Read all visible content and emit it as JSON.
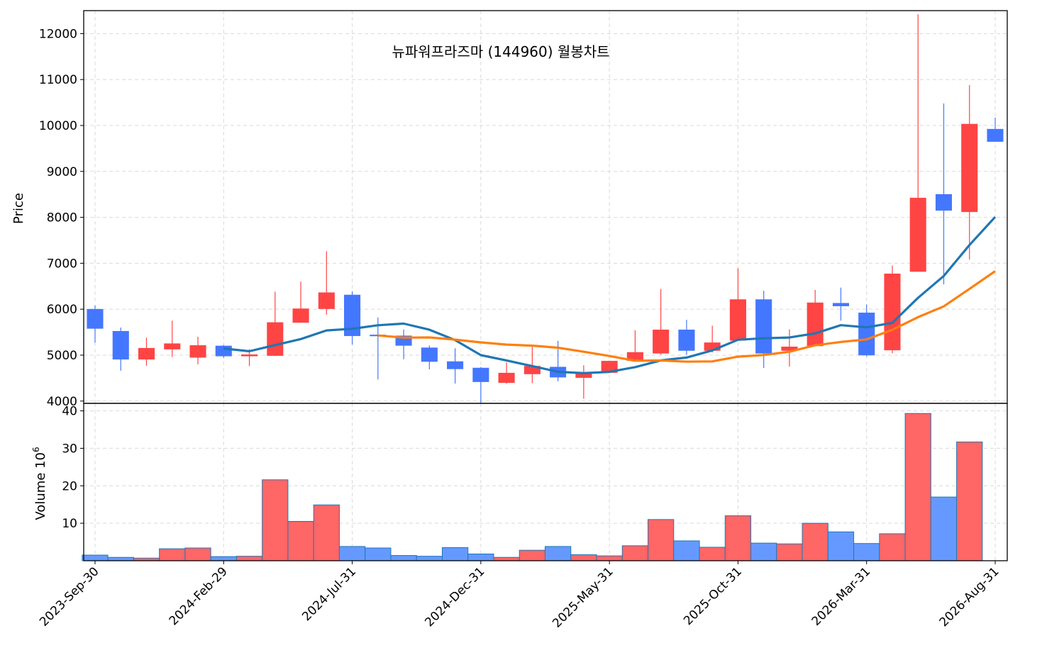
{
  "chart_data": [
    {
      "panel": "price",
      "type": "candlestick",
      "title": "뉴파워프라즈마 (144960) 월봉차트",
      "ylabel": "Price",
      "ylim": [
        3950,
        12500
      ],
      "yticks": [
        "4000",
        "5000",
        "6000",
        "7000",
        "8000",
        "9000",
        "10000",
        "11000",
        "12000"
      ],
      "grid": true,
      "up_color": "#ff4444",
      "down_color": "#4477ff",
      "candles": [
        {
          "date": "2023-Sep-30",
          "open": 6000,
          "high": 6080,
          "low": 5270,
          "close": 5580
        },
        {
          "date": "2023-Oct-31",
          "open": 5520,
          "high": 5600,
          "low": 4660,
          "close": 4910
        },
        {
          "date": "2023-Nov-30",
          "open": 4910,
          "high": 5380,
          "low": 4770,
          "close": 5150
        },
        {
          "date": "2023-Dec-31",
          "open": 5130,
          "high": 5750,
          "low": 4960,
          "close": 5250
        },
        {
          "date": "2024-Jan-31",
          "open": 4950,
          "high": 5400,
          "low": 4800,
          "close": 5210
        },
        {
          "date": "2024-Feb-29",
          "open": 5200,
          "high": 5220,
          "low": 4940,
          "close": 4980
        },
        {
          "date": "2024-Mar-31",
          "open": 4980,
          "high": 5130,
          "low": 4760,
          "close": 5010
        },
        {
          "date": "2024-Apr-30",
          "open": 4990,
          "high": 6380,
          "low": 4980,
          "close": 5710
        },
        {
          "date": "2024-May-31",
          "open": 5710,
          "high": 6600,
          "low": 5710,
          "close": 6010
        },
        {
          "date": "2024-Jun-30",
          "open": 6010,
          "high": 7260,
          "low": 5880,
          "close": 6360
        },
        {
          "date": "2024-Jul-31",
          "open": 6310,
          "high": 6390,
          "low": 5230,
          "close": 5420
        },
        {
          "date": "2024-Aug-31",
          "open": 5440,
          "high": 5820,
          "low": 4470,
          "close": 5420
        },
        {
          "date": "2024-Sep-30",
          "open": 5420,
          "high": 5560,
          "low": 4910,
          "close": 5210
        },
        {
          "date": "2024-Oct-31",
          "open": 5160,
          "high": 5210,
          "low": 4690,
          "close": 4860
        },
        {
          "date": "2024-Nov-30",
          "open": 4860,
          "high": 5150,
          "low": 4380,
          "close": 4700
        },
        {
          "date": "2024-Dec-31",
          "open": 4720,
          "high": 4740,
          "low": 3960,
          "close": 4420
        },
        {
          "date": "2025-Jan-31",
          "open": 4400,
          "high": 4840,
          "low": 4380,
          "close": 4610
        },
        {
          "date": "2025-Feb-28",
          "open": 4590,
          "high": 5180,
          "low": 4390,
          "close": 4760
        },
        {
          "date": "2025-Mar-31",
          "open": 4740,
          "high": 5310,
          "low": 4430,
          "close": 4520
        },
        {
          "date": "2025-Apr-30",
          "open": 4510,
          "high": 4780,
          "low": 4050,
          "close": 4620
        },
        {
          "date": "2025-May-31",
          "open": 4620,
          "high": 4880,
          "low": 4620,
          "close": 4870
        },
        {
          "date": "2025-Jun-30",
          "open": 4880,
          "high": 5540,
          "low": 4880,
          "close": 5060
        },
        {
          "date": "2025-Jul-31",
          "open": 5040,
          "high": 6440,
          "low": 5010,
          "close": 5550
        },
        {
          "date": "2025-Aug-31",
          "open": 5550,
          "high": 5770,
          "low": 5010,
          "close": 5100
        },
        {
          "date": "2025-Sep-30",
          "open": 5100,
          "high": 5640,
          "low": 5060,
          "close": 5270
        },
        {
          "date": "2025-Oct-31",
          "open": 5320,
          "high": 6890,
          "low": 5320,
          "close": 6210
        },
        {
          "date": "2025-Nov-30",
          "open": 6210,
          "high": 6400,
          "low": 4720,
          "close": 5040
        },
        {
          "date": "2025-Dec-31",
          "open": 5100,
          "high": 5560,
          "low": 4750,
          "close": 5180
        },
        {
          "date": "2026-Jan-31",
          "open": 5200,
          "high": 6420,
          "low": 5200,
          "close": 6140
        },
        {
          "date": "2026-Feb-28",
          "open": 6130,
          "high": 6470,
          "low": 5750,
          "close": 6070
        },
        {
          "date": "2026-Mar-31",
          "open": 5920,
          "high": 6100,
          "low": 4970,
          "close": 5000
        },
        {
          "date": "2026-Apr-30",
          "open": 5110,
          "high": 6950,
          "low": 5040,
          "close": 6770
        },
        {
          "date": "2026-May-31",
          "open": 6820,
          "high": 12420,
          "low": 6820,
          "close": 8420
        },
        {
          "date": "2026-Jun-30",
          "open": 8500,
          "high": 10480,
          "low": 6540,
          "close": 8150
        },
        {
          "date": "2026-Jul-31",
          "open": 8120,
          "high": 10880,
          "low": 7080,
          "close": 10030
        },
        {
          "date": "2026-Aug-31",
          "open": 9920,
          "high": 10170,
          "low": 9650,
          "close": 9650
        }
      ],
      "moving_averages": [
        {
          "color": "#1f77b4",
          "values": [
            null,
            null,
            null,
            null,
            null,
            5145,
            5085,
            5218,
            5350,
            5538,
            5573,
            5650,
            5687,
            5553,
            5327,
            5000,
            4883,
            4762,
            4637,
            4608,
            4635,
            4738,
            4885,
            4947,
            5103,
            5335,
            5367,
            5383,
            5473,
            5652,
            5605,
            5703,
            6247,
            6723,
            7397,
            8008
          ]
        },
        {
          "color": "#ff7f0e",
          "values": [
            null,
            null,
            null,
            null,
            null,
            null,
            null,
            null,
            null,
            null,
            null,
            5428,
            5381,
            5385,
            5338,
            5277,
            5230,
            5206,
            5162,
            5073,
            4981,
            4878,
            4884,
            4857,
            4863,
            4967,
            5003,
            5073,
            5214,
            5287,
            5342,
            5552,
            5826,
            6062,
            6441,
            6828
          ]
        }
      ]
    },
    {
      "panel": "volume",
      "type": "bar",
      "ylabel": "Volume 10",
      "ylabel_exponent": "6",
      "ylim": [
        0,
        42
      ],
      "yticks": [
        "10",
        "20",
        "30",
        "40"
      ],
      "grid": true,
      "up_color": "#ff6666",
      "down_color": "#6699ff",
      "edge_color": "#1f77b4",
      "values": [
        1.5,
        0.9,
        0.7,
        3.2,
        3.4,
        1.1,
        1.2,
        21.6,
        10.5,
        14.9,
        3.8,
        3.4,
        1.4,
        1.2,
        3.5,
        1.8,
        0.9,
        2.8,
        3.8,
        1.6,
        1.3,
        4.0,
        11.0,
        5.3,
        3.6,
        12.0,
        4.7,
        4.5,
        10.0,
        7.7,
        4.6,
        7.2,
        39.3,
        17.0,
        31.7,
        0
      ],
      "directions": [
        "down",
        "down",
        "up",
        "up",
        "up",
        "down",
        "up",
        "up",
        "up",
        "up",
        "down",
        "down",
        "down",
        "down",
        "down",
        "down",
        "up",
        "up",
        "down",
        "up",
        "up",
        "up",
        "up",
        "down",
        "up",
        "up",
        "down",
        "up",
        "up",
        "down",
        "down",
        "up",
        "up",
        "down",
        "up",
        "down"
      ]
    }
  ],
  "xaxis": {
    "tick_labels": [
      {
        "index": 0,
        "label": "2023-Sep-30"
      },
      {
        "index": 5,
        "label": "2024-Feb-29"
      },
      {
        "index": 10,
        "label": "2024-Jul-31"
      },
      {
        "index": 15,
        "label": "2024-Dec-31"
      },
      {
        "index": 20,
        "label": "2025-May-31"
      },
      {
        "index": 25,
        "label": "2025-Oct-31"
      },
      {
        "index": 30,
        "label": "2026-Mar-31"
      },
      {
        "index": 35,
        "label": "2026-Aug-31"
      }
    ]
  }
}
